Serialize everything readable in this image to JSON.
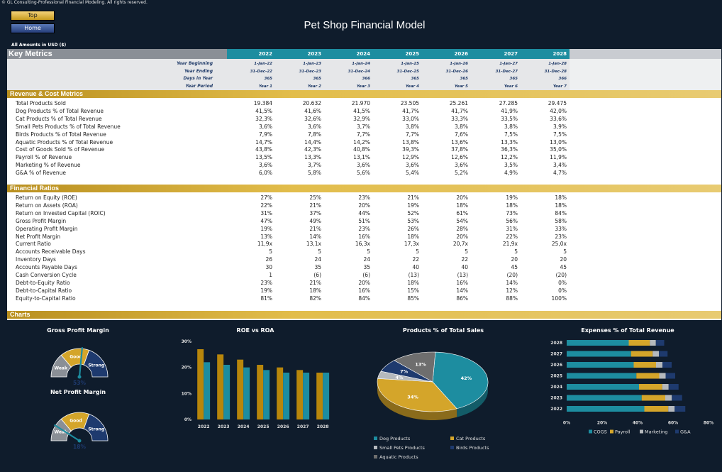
{
  "copyright": "© GL Consulting-Professional Financial Modeling. All rights reserved.",
  "nav": {
    "top_label": "Top",
    "home_label": "Home"
  },
  "title": "Pet Shop Financial Model",
  "amounts_note": "All Amounts in  USD ($)",
  "key_metrics": {
    "title": "Key Metrics",
    "years": [
      "2022",
      "2023",
      "2024",
      "2025",
      "2026",
      "2027",
      "2028"
    ],
    "period_rows": [
      {
        "label": "Year Beginning",
        "values": [
          "1-Jan-22",
          "1-Jan-23",
          "1-Jan-24",
          "1-Jan-25",
          "1-Jan-26",
          "1-Jan-27",
          "1-Jan-28"
        ]
      },
      {
        "label": "Year Ending",
        "values": [
          "31-Dec-22",
          "31-Dec-23",
          "31-Dec-24",
          "31-Dec-25",
          "31-Dec-26",
          "31-Dec-27",
          "31-Dec-28"
        ]
      },
      {
        "label": "Days in Year",
        "values": [
          "365",
          "365",
          "366",
          "365",
          "365",
          "365",
          "366"
        ]
      },
      {
        "label": "Year Period",
        "values": [
          "Year 1",
          "Year 2",
          "Year 3",
          "Year 4",
          "Year 5",
          "Year 6",
          "Year 7"
        ]
      }
    ]
  },
  "revenue_cost": {
    "title": "Revenue & Cost Metrics",
    "rows": [
      {
        "label": "Total Products Sold",
        "values": [
          "19.384",
          "20.632",
          "21.970",
          "23.505",
          "25.261",
          "27.285",
          "29.475"
        ]
      },
      {
        "label": "Dog Products % of Total Revenue",
        "values": [
          "41,5%",
          "41,6%",
          "41,5%",
          "41,7%",
          "41,7%",
          "41,9%",
          "42,0%"
        ]
      },
      {
        "label": "Cat Products % of Total Revenue",
        "values": [
          "32,3%",
          "32,6%",
          "32,9%",
          "33,0%",
          "33,3%",
          "33,5%",
          "33,6%"
        ]
      },
      {
        "label": "Small Pets Products % of Total Revenue",
        "values": [
          "3,6%",
          "3,6%",
          "3,7%",
          "3,8%",
          "3,8%",
          "3,8%",
          "3,9%"
        ]
      },
      {
        "label": "Birds Products % of Total Revenue",
        "values": [
          "7,9%",
          "7,8%",
          "7,7%",
          "7,7%",
          "7,6%",
          "7,5%",
          "7,5%"
        ]
      },
      {
        "label": "Aquatic Products % of Total Revenue",
        "values": [
          "14,7%",
          "14,4%",
          "14,2%",
          "13,8%",
          "13,6%",
          "13,3%",
          "13,0%"
        ]
      },
      {
        "label": "Cost of Goods Sold % of Revenue",
        "values": [
          "43,8%",
          "42,3%",
          "40,8%",
          "39,3%",
          "37,8%",
          "36,3%",
          "35,0%"
        ]
      },
      {
        "label": "Payroll % of Revenue",
        "values": [
          "13,5%",
          "13,3%",
          "13,1%",
          "12,9%",
          "12,6%",
          "12,2%",
          "11,9%"
        ]
      },
      {
        "label": "Marketing % of Revenue",
        "values": [
          "3,6%",
          "3,7%",
          "3,6%",
          "3,6%",
          "3,6%",
          "3,5%",
          "3,4%"
        ]
      },
      {
        "label": "G&A % of Revenue",
        "values": [
          "6,0%",
          "5,8%",
          "5,6%",
          "5,4%",
          "5,2%",
          "4,9%",
          "4,7%"
        ]
      }
    ]
  },
  "financial_ratios": {
    "title": "Financial Ratios",
    "rows": [
      {
        "label": "Return on Equity (ROE)",
        "values": [
          "27%",
          "25%",
          "23%",
          "21%",
          "20%",
          "19%",
          "18%"
        ]
      },
      {
        "label": "Return on Assets (ROA)",
        "values": [
          "22%",
          "21%",
          "20%",
          "19%",
          "18%",
          "18%",
          "18%"
        ]
      },
      {
        "label": "Return on Invested Capital (ROIC)",
        "values": [
          "31%",
          "37%",
          "44%",
          "52%",
          "61%",
          "73%",
          "84%"
        ]
      },
      {
        "label": "Gross Profit Margin",
        "values": [
          "47%",
          "49%",
          "51%",
          "53%",
          "54%",
          "56%",
          "58%"
        ]
      },
      {
        "label": "Operating Profit Margin",
        "values": [
          "19%",
          "21%",
          "23%",
          "26%",
          "28%",
          "31%",
          "33%"
        ]
      },
      {
        "label": "Net Profit Margin",
        "values": [
          "13%",
          "14%",
          "16%",
          "18%",
          "20%",
          "22%",
          "23%"
        ]
      },
      {
        "label": "Current Ratio",
        "values": [
          "11,9x",
          "13,1x",
          "16,3x",
          "17,3x",
          "20,7x",
          "21,9x",
          "25,0x"
        ]
      },
      {
        "label": "Accounts Receivable Days",
        "values": [
          "5",
          "5",
          "5",
          "5",
          "5",
          "5",
          "5"
        ]
      },
      {
        "label": "Inventory Days",
        "values": [
          "26",
          "24",
          "24",
          "22",
          "22",
          "20",
          "20"
        ]
      },
      {
        "label": "Accounts Payable Days",
        "values": [
          "30",
          "35",
          "35",
          "40",
          "40",
          "45",
          "45"
        ]
      },
      {
        "label": "Cash Conversion Cycle",
        "values": [
          "1",
          "(6)",
          "(6)",
          "(13)",
          "(13)",
          "(20)",
          "(20)"
        ]
      },
      {
        "label": "Debt-to-Equity Ratio",
        "values": [
          "23%",
          "21%",
          "20%",
          "18%",
          "16%",
          "14%",
          "0%"
        ]
      },
      {
        "label": "Debt-to-Capital Ratio",
        "values": [
          "19%",
          "18%",
          "16%",
          "15%",
          "14%",
          "12%",
          "0%"
        ]
      },
      {
        "label": "Equity-to-Capital Ratio",
        "values": [
          "81%",
          "82%",
          "84%",
          "85%",
          "86%",
          "88%",
          "100%"
        ]
      }
    ]
  },
  "charts_title": "Charts",
  "chart_data": [
    {
      "type": "gauge",
      "title": "Gross Profit Margin",
      "zones": [
        "Weak",
        "Good",
        "Strong"
      ],
      "value_label": "53%",
      "value": 0.53
    },
    {
      "type": "gauge",
      "title": "Net Profit Margin",
      "zones": [
        "Weak",
        "Good",
        "Strong"
      ],
      "value_label": "18%",
      "value": 0.18
    },
    {
      "type": "bar",
      "title": "ROE vs ROA",
      "categories": [
        "2022",
        "2023",
        "2024",
        "2025",
        "2026",
        "2027",
        "2028"
      ],
      "series": [
        {
          "values": [
            27,
            25,
            23,
            21,
            20,
            19,
            18
          ],
          "color": "#b8860b"
        },
        {
          "values": [
            22,
            21,
            20,
            19,
            18,
            18,
            18
          ],
          "color": "#1d8da0"
        }
      ],
      "ytick_labels": [
        "0%",
        "10%",
        "20%",
        "30%"
      ],
      "ylim": [
        0,
        30
      ]
    },
    {
      "type": "pie",
      "title": "Products % of Total Sales",
      "series": [
        {
          "name": "Dog Products",
          "value": 42,
          "label": "42%",
          "color": "#1d8da0"
        },
        {
          "name": "Cat Products",
          "value": 34,
          "label": "34%",
          "color": "#d4a52a"
        },
        {
          "name": "Small Pets Products",
          "value": 4,
          "label": "4%",
          "color": "#b5b9bd"
        },
        {
          "name": "Birds Products",
          "value": 7,
          "label": "7%",
          "color": "#1e3a6e"
        },
        {
          "name": "Aquatic Products",
          "value": 13,
          "label": "13%",
          "color": "#6e6e6e"
        }
      ]
    },
    {
      "type": "bar",
      "orientation": "horizontal-stacked",
      "title": "Expenses % of Total Revenue",
      "categories": [
        "2028",
        "2027",
        "2026",
        "2025",
        "2024",
        "2023",
        "2022"
      ],
      "series": [
        {
          "name": "COGS",
          "values": [
            35.0,
            36.3,
            37.8,
            39.3,
            40.8,
            42.3,
            43.8
          ],
          "color": "#1d8da0"
        },
        {
          "name": "Payroll",
          "values": [
            11.9,
            12.2,
            12.6,
            12.9,
            13.1,
            13.3,
            13.5
          ],
          "color": "#d4a52a"
        },
        {
          "name": "Marketing",
          "values": [
            3.4,
            3.5,
            3.6,
            3.6,
            3.6,
            3.7,
            3.6
          ],
          "color": "#b5b9bd"
        },
        {
          "name": "G&A",
          "values": [
            4.7,
            4.9,
            5.2,
            5.4,
            5.6,
            5.8,
            6.0
          ],
          "color": "#1e3a6e"
        }
      ],
      "xtick_labels": [
        "0%",
        "20%",
        "40%",
        "60%",
        "80%"
      ],
      "xlim": [
        0,
        80
      ]
    }
  ]
}
